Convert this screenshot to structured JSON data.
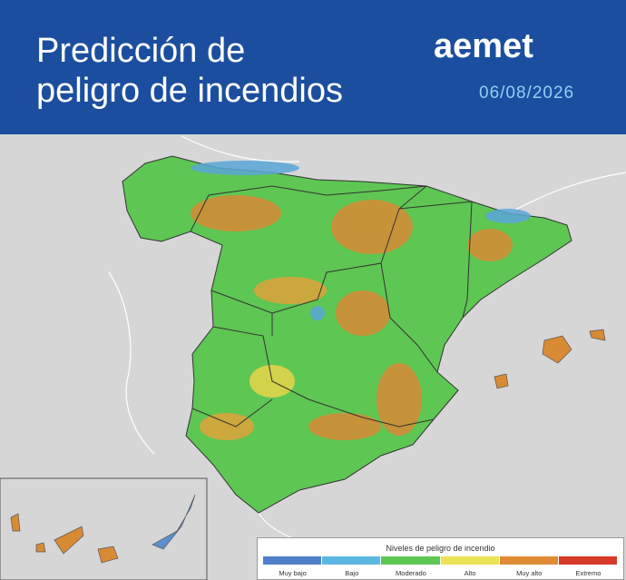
{
  "header": {
    "title_lines": [
      "Predicción de",
      "peligro de incendios"
    ],
    "logo": "aemet",
    "date": "06/08/2026"
  },
  "legend": {
    "title": "Niveles de peligro de incendio",
    "levels": [
      {
        "name": "Muy bajo",
        "color": "#4f7fc8"
      },
      {
        "name": "Bajo",
        "color": "#5ab8e0"
      },
      {
        "name": "Moderado",
        "color": "#5ec653"
      },
      {
        "name": "Alto",
        "color": "#ece255"
      },
      {
        "name": "Muy alto",
        "color": "#e08a35"
      },
      {
        "name": "Extremo",
        "color": "#d83a2a"
      }
    ]
  }
}
